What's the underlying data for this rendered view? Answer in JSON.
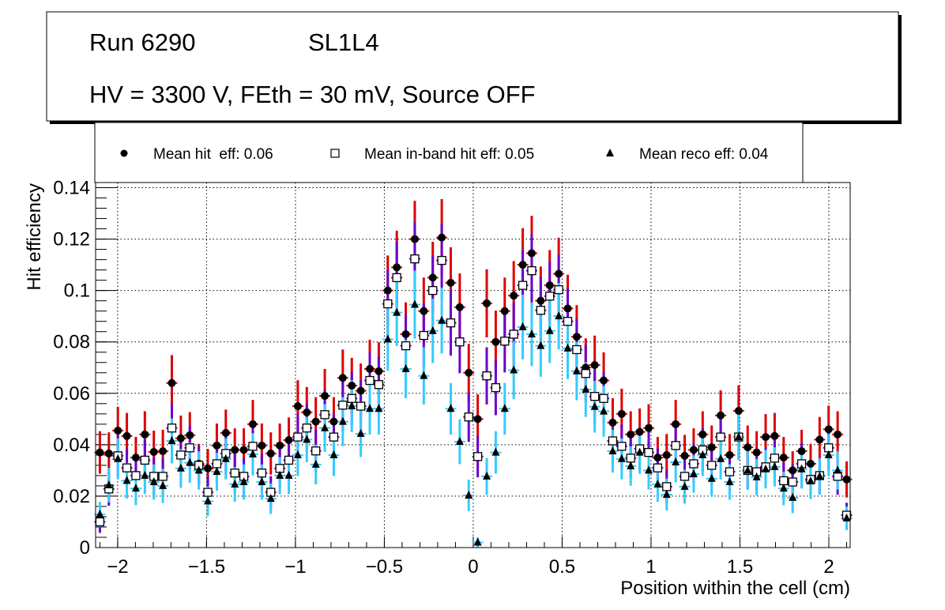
{
  "title_box": {
    "run": "Run 6290",
    "layer": "SL1L4",
    "conditions": "HV = 3300 V, FEth = 30 mV, Source OFF"
  },
  "chart_data": {
    "type": "scatter",
    "title": "Run 6290 SL1L4 — HV = 3300 V, FEth = 30 mV, Source OFF",
    "xlabel": "Position within the cell (cm)",
    "ylabel": "Hit efficiency",
    "xlim": [
      -2.124,
      2.12
    ],
    "ylim": [
      0,
      0.142
    ],
    "x_range_of_points": [
      -2.1,
      2.1
    ],
    "grid": true,
    "legend_placement": "top",
    "x_ticks": [
      -2,
      -1.5,
      -1,
      -0.5,
      0,
      0.5,
      1,
      1.5,
      2
    ],
    "x_tick_labels": [
      "−2",
      "−1.5",
      "−1",
      "−0.5",
      "0",
      "0.5",
      "1",
      "1.5",
      "2"
    ],
    "y_ticks": [
      0,
      0.02,
      0.04,
      0.06,
      0.08,
      0.1,
      0.12,
      0.14
    ],
    "y_tick_labels": [
      "0",
      "0.02",
      "0.04",
      "0.06",
      "0.08",
      "0.1",
      "0.12",
      "0.14"
    ],
    "error_scale": 0.043,
    "series": [
      {
        "name": "Mean hit  eff: 0.06",
        "marker": "circle",
        "error_color": "#dd0000",
        "values": [
          0.037,
          0.0366,
          0.0455,
          0.0434,
          0.035,
          0.044,
          0.0372,
          0.0375,
          0.064,
          0.0425,
          0.0437,
          0.0326,
          0.0308,
          0.0397,
          0.0446,
          0.038,
          0.038,
          0.048,
          0.0397,
          0.0366,
          0.0397,
          0.0418,
          0.055,
          0.0526,
          0.049,
          0.059,
          0.049,
          0.066,
          0.063,
          0.061,
          0.0695,
          0.0686,
          0.1,
          0.109,
          0.083,
          0.12,
          0.092,
          0.105,
          0.1206,
          0.103,
          0.0935,
          0.068,
          0.05,
          0.095,
          0.08,
          0.092,
          0.098,
          0.11,
          0.1145,
          0.096,
          0.102,
          0.1065,
          0.093,
          0.082,
          0.07,
          0.071,
          0.065,
          0.0486,
          0.052,
          0.044,
          0.045,
          0.0465,
          0.035,
          0.036,
          0.048,
          0.0357,
          0.038,
          0.044,
          0.039,
          0.0514,
          0.036,
          0.0532,
          0.039,
          0.037,
          0.043,
          0.0434,
          0.035,
          0.03,
          0.0375,
          0.0326,
          0.042,
          0.046,
          0.044,
          0.0265
        ]
      },
      {
        "name": "Mean in-band hit eff: 0.05",
        "marker": "open-square",
        "error_color": "#6a00cc",
        "values": [
          0.01,
          0.0228,
          0.0357,
          0.031,
          0.028,
          0.034,
          0.0277,
          0.0277,
          0.0465,
          0.036,
          0.0388,
          0.032,
          0.0215,
          0.0326,
          0.0366,
          0.029,
          0.0277,
          0.0394,
          0.029,
          0.0215,
          0.0308,
          0.034,
          0.043,
          0.0465,
          0.0376,
          0.0517,
          0.043,
          0.0554,
          0.058,
          0.055,
          0.065,
          0.0634,
          0.0948,
          0.105,
          0.0785,
          0.1123,
          0.0825,
          0.1,
          0.1117,
          0.0874,
          0.08,
          0.0508,
          0.0354,
          0.0668,
          0.0622,
          0.0803,
          0.083,
          0.102,
          0.1077,
          0.0923,
          0.0978,
          0.1003,
          0.088,
          0.077,
          0.0677,
          0.0588,
          0.058,
          0.0415,
          0.0394,
          0.0348,
          0.0384,
          0.037,
          0.031,
          0.0237,
          0.0397,
          0.0277,
          0.0326,
          0.038,
          0.032,
          0.043,
          0.0295,
          0.043,
          0.03,
          0.0295,
          0.0314,
          0.0348,
          0.026,
          0.0255,
          0.0326,
          0.0265,
          0.028,
          0.0388,
          0.0277,
          0.0126
        ]
      },
      {
        "name": "Mean reco eff: 0.04",
        "marker": "triangle",
        "error_color": "#33ccff",
        "values": [
          0.0129,
          0.0243,
          0.0345,
          0.026,
          0.023,
          0.028,
          0.0255,
          0.024,
          0.0415,
          0.0308,
          0.033,
          0.03,
          0.018,
          0.0295,
          0.0345,
          0.0246,
          0.0255,
          0.0363,
          0.0255,
          0.019,
          0.028,
          0.028,
          0.036,
          0.042,
          0.0323,
          0.0465,
          0.036,
          0.049,
          0.055,
          0.0443,
          0.054,
          0.054,
          0.081,
          0.0914,
          0.0695,
          0.0945,
          0.0668,
          0.0843,
          0.0883,
          0.054,
          0.0412,
          0.0203,
          0.002,
          0.0277,
          0.037,
          0.054,
          0.069,
          0.0858,
          0.083,
          0.0785,
          0.0843,
          0.09,
          0.0775,
          0.0686,
          0.0615,
          0.0548,
          0.053,
          0.0375,
          0.0345,
          0.0317,
          0.037,
          0.03,
          0.0246,
          0.0206,
          0.0332,
          0.0237,
          0.0286,
          0.036,
          0.0268,
          0.0345,
          0.0255,
          0.043,
          0.03,
          0.0274,
          0.0305,
          0.0314,
          0.023,
          0.0194,
          0.0305,
          0.0258,
          0.0277,
          0.036,
          0.03,
          0.0114
        ]
      }
    ]
  }
}
